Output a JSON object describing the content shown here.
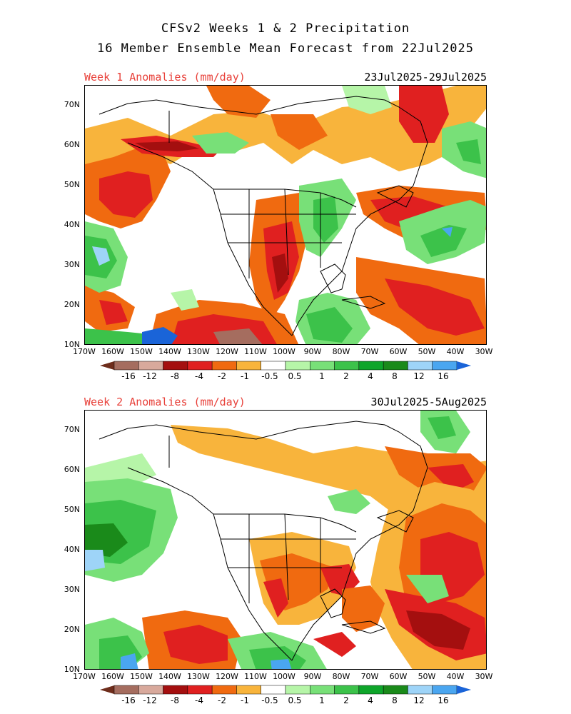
{
  "header": {
    "line1": "CFSv2 Weeks 1 & 2 Precipitation",
    "line2": "16 Member Ensemble Mean Forecast from 22Jul2025"
  },
  "panels": [
    {
      "label": "Week 1 Anomalies (mm/day)",
      "dates": "23Jul2025-29Jul2025"
    },
    {
      "label": "Week 2 Anomalies (mm/day)",
      "dates": "30Jul2025-5Aug2025"
    }
  ],
  "lat_labels": [
    "70N",
    "60N",
    "50N",
    "40N",
    "30N",
    "20N",
    "10N"
  ],
  "lon_labels": [
    "170W",
    "160W",
    "150W",
    "140W",
    "130W",
    "120W",
    "110W",
    "100W",
    "90W",
    "80W",
    "70W",
    "60W",
    "50W",
    "40W",
    "30W"
  ],
  "colorbar": {
    "labels": [
      "-16",
      "-12",
      "-8",
      "-4",
      "-2",
      "-1",
      "-0.5",
      "0.5",
      "1",
      "2",
      "4",
      "8",
      "12",
      "16"
    ],
    "colors": [
      "#6e2d1c",
      "#a56d5f",
      "#d8a99c",
      "#a40f0f",
      "#e02020",
      "#f06a10",
      "#f8b43c",
      "#ffffff",
      "#b6f5a8",
      "#78e078",
      "#3cc24a",
      "#0ea52a",
      "#1a8a1a",
      "#9ed4f8",
      "#4aa6f0",
      "#1a64d8"
    ]
  }
}
